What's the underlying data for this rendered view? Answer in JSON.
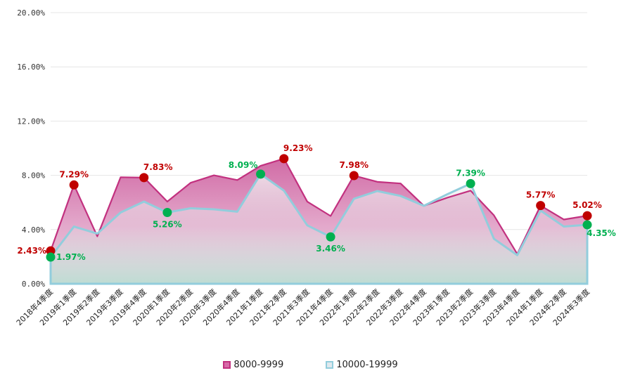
{
  "chart_data": {
    "type": "area",
    "title": "",
    "xlabel": "",
    "ylabel": "",
    "ylim": [
      0,
      20
    ],
    "yticks": [
      "0.00%",
      "4.00%",
      "8.00%",
      "12.00%",
      "16.00%",
      "20.00%"
    ],
    "ytick_values": [
      0,
      4,
      8,
      12,
      16,
      20
    ],
    "grid": true,
    "legend_position": "bottom",
    "categories": [
      "2018年4季度",
      "2019年1季度",
      "2019年2季度",
      "2019年3季度",
      "2019年4季度",
      "2020年1季度",
      "2020年2季度",
      "2020年3季度",
      "2020年4季度",
      "2021年1季度",
      "2021年2季度",
      "2021年3季度",
      "2021年4季度",
      "2022年1季度",
      "2022年2季度",
      "2022年3季度",
      "2022年4季度",
      "2023年1季度",
      "2023年2季度",
      "2023年3季度",
      "2023年4季度",
      "2024年1季度",
      "2024年2季度",
      "2024年3季度"
    ],
    "series": [
      {
        "name": "8000-9999",
        "color": "#c2317f",
        "values": [
          2.43,
          7.29,
          3.5,
          7.86,
          7.83,
          6.06,
          7.45,
          8.0,
          7.65,
          8.7,
          9.23,
          6.06,
          5.0,
          7.98,
          7.52,
          7.4,
          5.75,
          6.35,
          6.87,
          5.05,
          2.2,
          5.77,
          4.74,
          5.02
        ]
      },
      {
        "name": "10000-19999",
        "color": "#92cddc",
        "values": [
          1.97,
          4.22,
          3.7,
          5.26,
          6.06,
          5.26,
          5.57,
          5.49,
          5.32,
          8.09,
          6.87,
          4.31,
          3.46,
          6.27,
          6.84,
          6.48,
          5.75,
          6.6,
          7.39,
          3.32,
          2.11,
          5.4,
          4.22,
          4.35
        ]
      }
    ],
    "annotations": [
      {
        "series": 0,
        "index": 0,
        "text": "2.43%",
        "color": "#c00000",
        "placement": "left"
      },
      {
        "series": 0,
        "index": 1,
        "text": "7.29%",
        "color": "#c00000",
        "placement": "above"
      },
      {
        "series": 0,
        "index": 4,
        "text": "7.83%",
        "color": "#c00000",
        "placement": "above-right"
      },
      {
        "series": 0,
        "index": 10,
        "text": "9.23%",
        "color": "#c00000",
        "placement": "above-right"
      },
      {
        "series": 0,
        "index": 13,
        "text": "7.98%",
        "color": "#c00000",
        "placement": "above"
      },
      {
        "series": 0,
        "index": 21,
        "text": "5.77%",
        "color": "#c00000",
        "placement": "above"
      },
      {
        "series": 0,
        "index": 23,
        "text": "5.02%",
        "color": "#c00000",
        "placement": "above"
      },
      {
        "series": 1,
        "index": 0,
        "text": "1.97%",
        "color": "#00b050",
        "placement": "right"
      },
      {
        "series": 1,
        "index": 5,
        "text": "5.26%",
        "color": "#00b050",
        "placement": "below"
      },
      {
        "series": 1,
        "index": 9,
        "text": "8.09%",
        "color": "#00b050",
        "placement": "above-left"
      },
      {
        "series": 1,
        "index": 12,
        "text": "3.46%",
        "color": "#00b050",
        "placement": "below"
      },
      {
        "series": 1,
        "index": 18,
        "text": "7.39%",
        "color": "#00b050",
        "placement": "above"
      },
      {
        "series": 1,
        "index": 23,
        "text": "4.35%",
        "color": "#00b050",
        "placement": "below-right"
      }
    ]
  }
}
